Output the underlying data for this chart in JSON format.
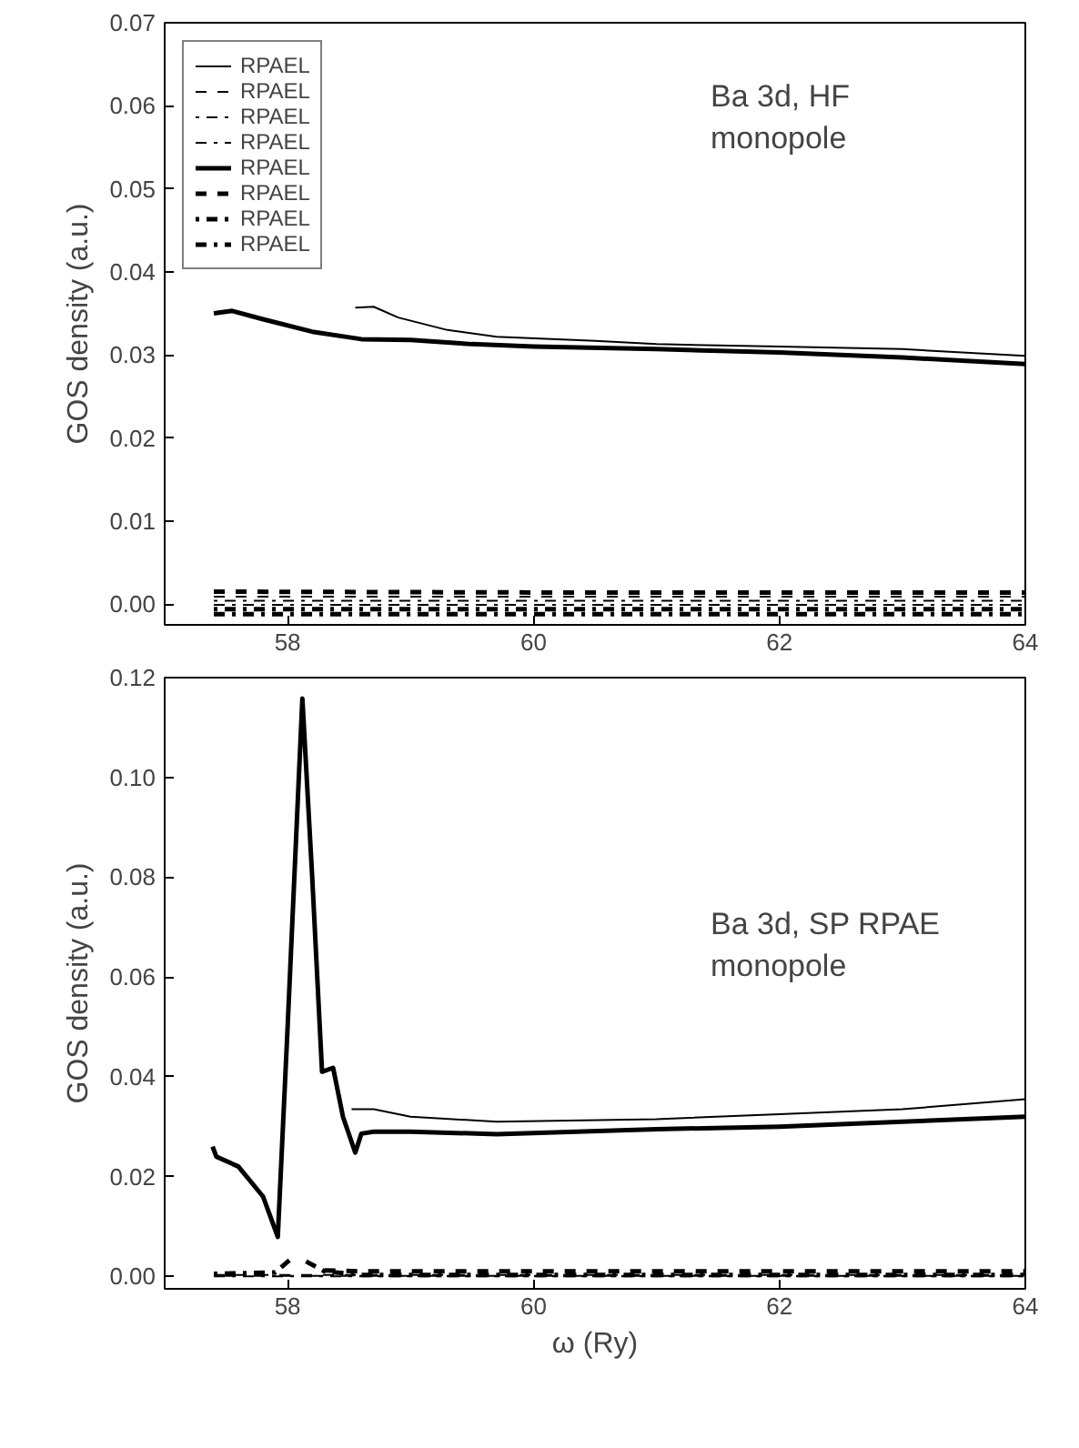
{
  "chart_data": [
    {
      "type": "line",
      "ylabel": "GOS density (a.u.)",
      "annotations": [
        "Ba 3d, HF\nmonopole"
      ],
      "xlim": [
        57,
        64
      ],
      "xticks": [
        58,
        60,
        62,
        64
      ],
      "ylim": [
        -0.0025,
        0.07
      ],
      "yticks": [
        {
          "value": 0.0,
          "label": "0.00"
        },
        {
          "value": 0.01,
          "label": "0.01"
        },
        {
          "value": 0.02,
          "label": "0.02"
        },
        {
          "value": 0.03,
          "label": "0.03"
        },
        {
          "value": 0.04,
          "label": "0.04"
        },
        {
          "value": 0.05,
          "label": "0.05"
        },
        {
          "value": 0.06,
          "label": "0.06"
        },
        {
          "value": 0.07,
          "label": "0.07"
        }
      ],
      "legend": "top left",
      "grid": false,
      "series": [
        {
          "name": "RPAEL",
          "color": "#000000",
          "line_style": "solid",
          "x": [
            58.55,
            58.7,
            58.9,
            59.3,
            59.7,
            60.5,
            61,
            62,
            63,
            64
          ],
          "values": [
            0.0357,
            0.0358,
            0.0345,
            0.033,
            0.0322,
            0.0317,
            0.0313,
            0.031,
            0.0307,
            0.0299
          ]
        },
        {
          "name": "RPAEL",
          "color": "#000000",
          "line_style": "dashed",
          "x": [
            57.4,
            60,
            64
          ],
          "values": [
            0.0009,
            0.0009,
            0.0009
          ]
        },
        {
          "name": "RPAEL",
          "color": "#000000",
          "line_style": "dotted",
          "x": [
            57.4,
            60,
            64
          ],
          "values": [
            0.0004,
            0.0004,
            0.0004
          ]
        },
        {
          "name": "RPAEL",
          "color": "#000000",
          "line_style": "dashdot",
          "x": [
            57.4,
            60,
            64
          ],
          "values": [
            -0.0001,
            -0.0001,
            -0.0001
          ]
        },
        {
          "name": "RPAEL",
          "color": "#000000",
          "line_style": "solid",
          "x": [
            57.4,
            57.55,
            57.8,
            58.2,
            58.6,
            59,
            59.5,
            60,
            61,
            62,
            63,
            64
          ],
          "values": [
            0.035,
            0.0353,
            0.0343,
            0.0328,
            0.0319,
            0.0318,
            0.0313,
            0.031,
            0.0307,
            0.0303,
            0.0297,
            0.0289
          ]
        },
        {
          "name": "RPAEL",
          "color": "#000000",
          "line_style": "dashed",
          "x": [
            57.4,
            60,
            64
          ],
          "values": [
            0.0015,
            0.0014,
            0.0014
          ]
        },
        {
          "name": "RPAEL",
          "color": "#000000",
          "line_style": "dotted",
          "x": [
            57.4,
            60,
            64
          ],
          "values": [
            -0.0006,
            -0.0006,
            -0.0006
          ]
        },
        {
          "name": "RPAEL",
          "color": "#000000",
          "line_style": "dashdot",
          "x": [
            57.4,
            60,
            64
          ],
          "values": [
            -0.0012,
            -0.0012,
            -0.0012
          ]
        }
      ]
    },
    {
      "type": "line",
      "xlabel": "ω (Ry)",
      "ylabel": "GOS density (a.u.)",
      "annotations": [
        "Ba 3d, SP RPAE\nmonopole"
      ],
      "xlim": [
        57,
        64
      ],
      "xticks": [
        58,
        60,
        62,
        64
      ],
      "ylim": [
        -0.0025,
        0.12
      ],
      "yticks": [
        {
          "value": 0.0,
          "label": "0.00"
        },
        {
          "value": 0.02,
          "label": "0.02"
        },
        {
          "value": 0.04,
          "label": "0.04"
        },
        {
          "value": 0.06,
          "label": "0.06"
        },
        {
          "value": 0.08,
          "label": "0.08"
        },
        {
          "value": 0.1,
          "label": "0.10"
        },
        {
          "value": 0.12,
          "label": "0.12"
        }
      ],
      "grid": false,
      "series": [
        {
          "color": "#000000",
          "line_style": "solid",
          "x": [
            58.52,
            58.7,
            59,
            59.7,
            61,
            62,
            63,
            64
          ],
          "values": [
            0.0335,
            0.0335,
            0.032,
            0.031,
            0.0315,
            0.0325,
            0.0335,
            0.0355
          ]
        },
        {
          "color": "#000000",
          "line_style": "dashed",
          "x": [
            57.4,
            60,
            64
          ],
          "values": [
            0.0003,
            0.0003,
            0.0003
          ]
        },
        {
          "color": "#000000",
          "line_style": "dotted",
          "x": [
            57.4,
            60,
            64
          ],
          "values": [
            0.0001,
            0.0001,
            0.0001
          ]
        },
        {
          "color": "#000000",
          "line_style": "dashdot",
          "x": [
            57.4,
            60,
            64
          ],
          "values": [
            0.0,
            0.0,
            0.0
          ]
        },
        {
          "color": "#000000",
          "line_style": "solid",
          "x": [
            57.39,
            57.42,
            57.6,
            57.8,
            57.92,
            58.0,
            58.12,
            58.2,
            58.28,
            58.37,
            58.45,
            58.55,
            58.6,
            58.7,
            59,
            59.7,
            61,
            62,
            63,
            64
          ],
          "values": [
            0.026,
            0.024,
            0.022,
            0.016,
            0.0079,
            0.05,
            0.1158,
            0.08,
            0.041,
            0.0418,
            0.032,
            0.0248,
            0.0286,
            0.029,
            0.029,
            0.0285,
            0.0295,
            0.03,
            0.031,
            0.032
          ]
        },
        {
          "color": "#000000",
          "line_style": "dashed",
          "x": [
            58.3,
            58.6,
            60,
            64
          ],
          "values": [
            0.0012,
            0.001,
            0.001,
            0.001
          ]
        },
        {
          "color": "#000000",
          "line_style": "dotted",
          "x": [
            57.4,
            57.9,
            58.05
          ],
          "values": [
            0.0005,
            0.0008,
            0.004
          ]
        },
        {
          "color": "#000000",
          "line_style": "dashdot",
          "x": [
            58.15,
            58.3,
            58.6,
            60,
            64
          ],
          "values": [
            0.003,
            0.001,
            0.0003,
            0.0003,
            0.0003
          ]
        }
      ]
    }
  ]
}
